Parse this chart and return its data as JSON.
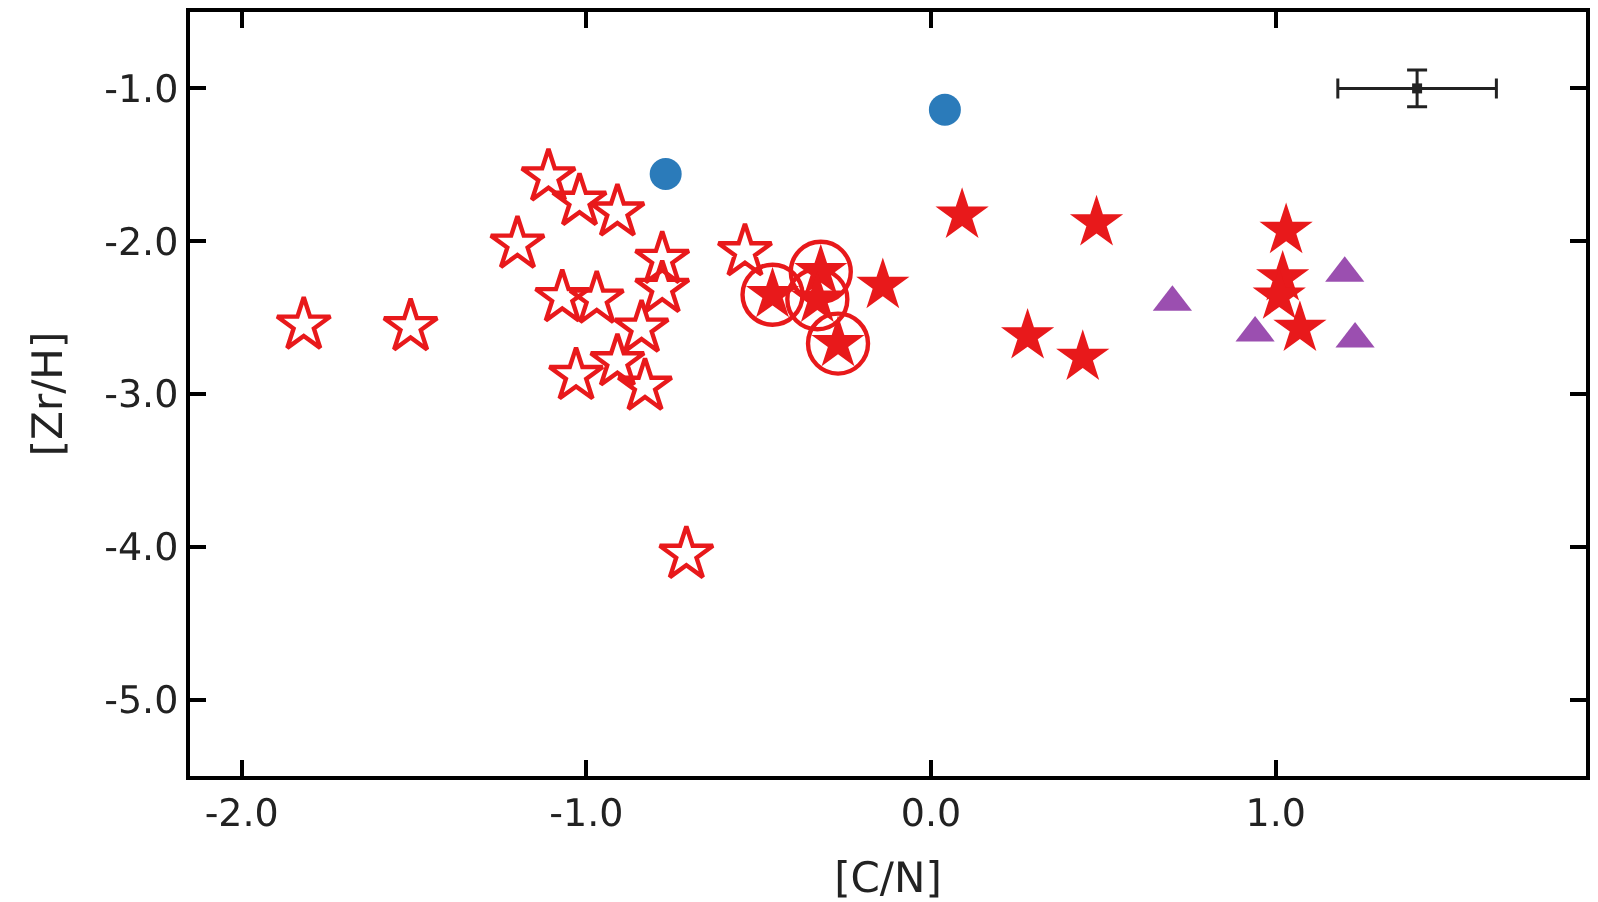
{
  "chart_data": {
    "type": "scatter",
    "xlabel": "[C/N]",
    "ylabel": "[Zr/H]",
    "xlim": [
      -2.15,
      1.9
    ],
    "ylim": [
      -5.5,
      -0.5
    ],
    "xticks": [
      {
        "value": -2,
        "label": "-2.0"
      },
      {
        "value": -1,
        "label": "-1.0"
      },
      {
        "value": 0,
        "label": "0.0"
      },
      {
        "value": 1,
        "label": "1.0"
      }
    ],
    "yticks": [
      {
        "value": -5,
        "label": "-5.0"
      },
      {
        "value": -4,
        "label": "-4.0"
      },
      {
        "value": -3,
        "label": "-3.0"
      },
      {
        "value": -2,
        "label": "-2.0"
      },
      {
        "value": -1,
        "label": "-1.0"
      }
    ],
    "series": [
      {
        "color": "#e8191b",
        "marker": "star-open",
        "x": [
          -1.82,
          -1.51,
          -1.11,
          -1.02,
          -0.91,
          -1.2,
          -0.78,
          -1.07,
          -0.97,
          -0.78,
          -0.84,
          -0.91,
          -1.03,
          -0.83,
          -0.71,
          -0.54
        ],
        "values": [
          -2.55,
          -2.56,
          -1.58,
          -1.74,
          -1.81,
          -2.02,
          -2.12,
          -2.37,
          -2.38,
          -2.31,
          -2.57,
          -2.79,
          -2.88,
          -2.95,
          -4.05,
          -2.07
        ]
      },
      {
        "color": "#e8191b",
        "marker": "star",
        "x": [
          -0.14,
          0.09,
          0.48,
          0.28,
          0.44,
          1.03,
          1.02,
          1.01,
          1.07
        ],
        "values": [
          -2.29,
          -1.83,
          -1.88,
          -2.62,
          -2.76,
          -1.93,
          -2.24,
          -2.36,
          -2.57
        ]
      },
      {
        "color": "#e8191b",
        "marker": "circle-open",
        "x": [
          -0.46,
          -0.32,
          -0.33,
          -0.27
        ],
        "values": [
          -2.35,
          -2.2,
          -2.38,
          -2.67
        ]
      },
      {
        "color": "#e8191b",
        "marker": "star",
        "x": [
          -0.46,
          -0.32,
          -0.33,
          -0.27
        ],
        "values": [
          -2.35,
          -2.2,
          -2.38,
          -2.67
        ]
      },
      {
        "color": "#2b7bba",
        "marker": "circle",
        "x": [
          -0.77,
          0.04
        ],
        "values": [
          -1.56,
          -1.14
        ]
      },
      {
        "color": "#9b4fb0",
        "marker": "triangle",
        "x": [
          0.7,
          0.94,
          1.2,
          1.23
        ],
        "values": [
          -2.4,
          -2.6,
          -2.21,
          -2.64
        ]
      },
      {
        "color": "#222222",
        "marker": "square",
        "x": [
          1.41
        ],
        "values": [
          -1.0
        ],
        "errors": [
          0.12
        ],
        "xerrors": [
          0.23
        ]
      }
    ]
  }
}
